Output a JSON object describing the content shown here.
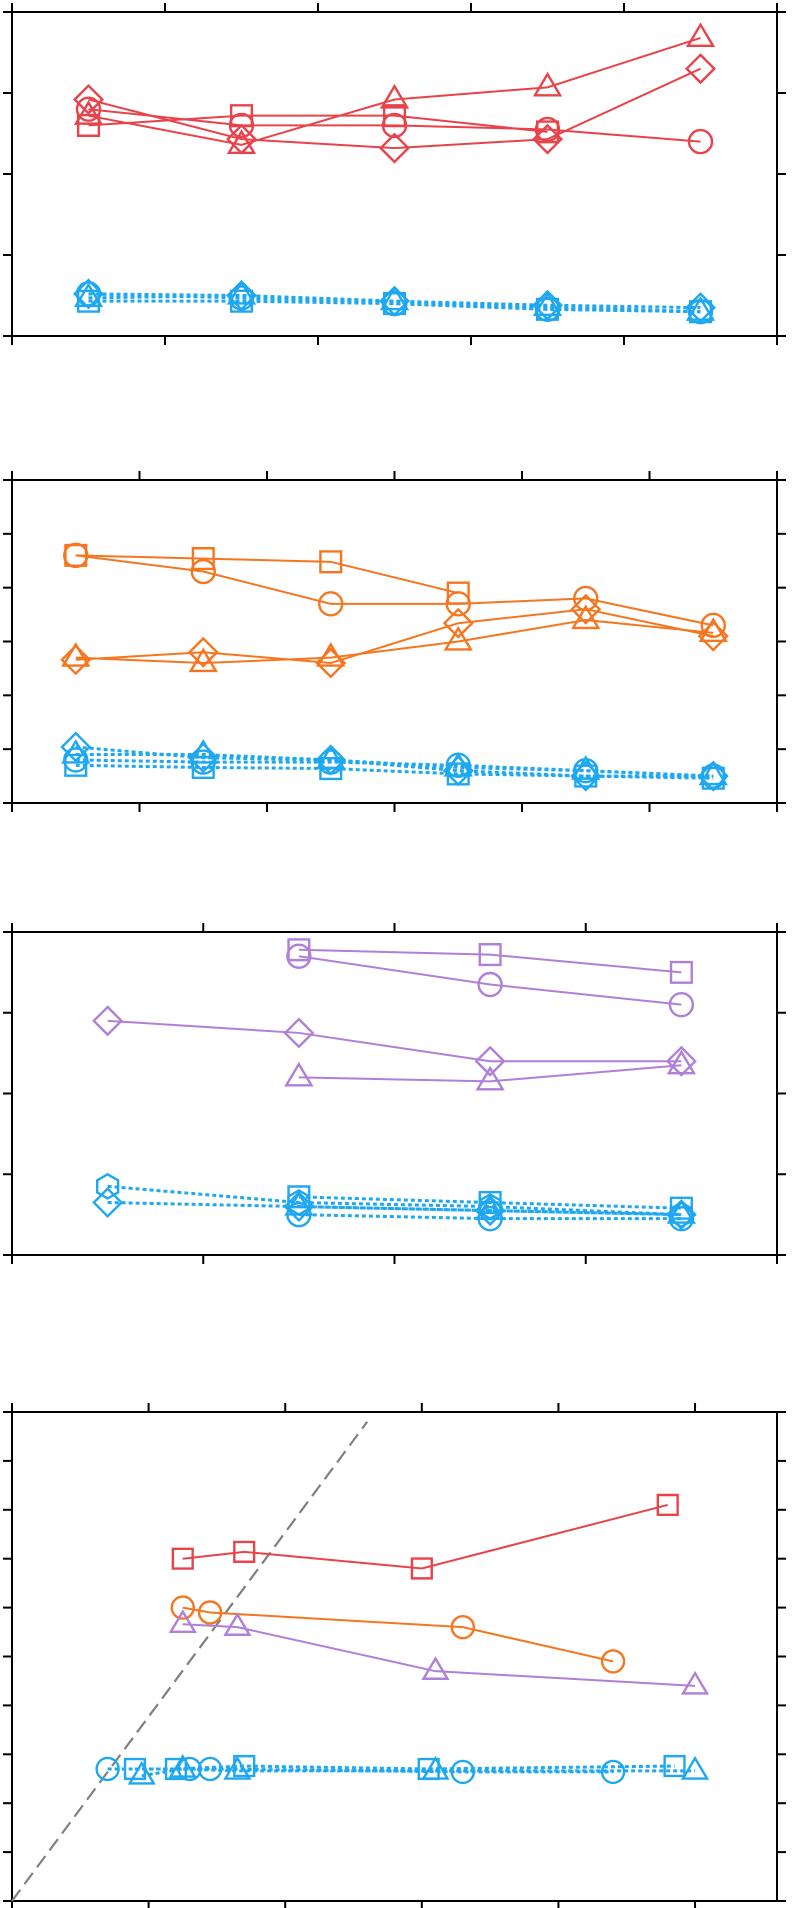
{
  "colors": {
    "red": "#e8434a",
    "orange": "#f5761f",
    "purple": "#b07fd6",
    "blue": "#1fa8f0",
    "gray": "#808080",
    "frame": "#000000"
  },
  "chart_data": [
    {
      "type": "line",
      "title": "",
      "xlabel": "",
      "ylabel": "",
      "xlim": [
        0.5,
        5.5
      ],
      "ylim": [
        0,
        4
      ],
      "xticks": [
        0.5,
        1.5,
        2.5,
        3.5,
        4.5,
        5.5
      ],
      "yticks": [
        0,
        1,
        2,
        3,
        4
      ],
      "grid": false,
      "series": [
        {
          "marker": "circle",
          "color": "red",
          "dash": false,
          "x": [
            1,
            2,
            3,
            4,
            5
          ],
          "y": [
            2.8,
            2.6,
            2.6,
            2.55,
            2.4
          ]
        },
        {
          "marker": "square",
          "color": "red",
          "dash": false,
          "x": [
            1,
            2,
            3,
            4
          ],
          "y": [
            2.6,
            2.72,
            2.72,
            2.52
          ]
        },
        {
          "marker": "triangle",
          "color": "red",
          "dash": false,
          "x": [
            1,
            2,
            3,
            4,
            5
          ],
          "y": [
            2.72,
            2.36,
            2.92,
            3.07,
            3.68
          ]
        },
        {
          "marker": "diamond",
          "color": "red",
          "dash": false,
          "x": [
            1,
            2,
            3,
            4,
            5
          ],
          "y": [
            2.92,
            2.43,
            2.32,
            2.43,
            3.3
          ]
        },
        {
          "marker": "circle",
          "color": "blue",
          "dash": true,
          "x": [
            1,
            2,
            3,
            4,
            5
          ],
          "y": [
            0.52,
            0.47,
            0.4,
            0.33,
            0.3
          ]
        },
        {
          "marker": "square",
          "color": "blue",
          "dash": true,
          "x": [
            1,
            2,
            3,
            4,
            5
          ],
          "y": [
            0.43,
            0.43,
            0.4,
            0.33,
            0.3
          ]
        },
        {
          "marker": "triangle",
          "color": "blue",
          "dash": true,
          "x": [
            1,
            2,
            3,
            4,
            5
          ],
          "y": [
            0.47,
            0.5,
            0.43,
            0.36,
            0.3
          ]
        },
        {
          "marker": "diamond",
          "color": "blue",
          "dash": true,
          "x": [
            1,
            2,
            3,
            4,
            5
          ],
          "y": [
            0.52,
            0.5,
            0.43,
            0.38,
            0.35
          ]
        }
      ]
    },
    {
      "type": "line",
      "title": "",
      "xlabel": "",
      "ylabel": "",
      "xlim": [
        0.5,
        6.5
      ],
      "ylim": [
        0,
        3
      ],
      "xticks": [
        0.5,
        1.5,
        2.5,
        3.5,
        4.5,
        5.5,
        6.5
      ],
      "yticks": [
        0,
        0.5,
        1,
        1.5,
        2,
        2.5,
        3
      ],
      "grid": false,
      "series": [
        {
          "marker": "circle",
          "color": "orange",
          "dash": false,
          "x": [
            1,
            2,
            3,
            4,
            5,
            6
          ],
          "y": [
            2.3,
            2.15,
            1.85,
            1.85,
            1.9,
            1.65
          ]
        },
        {
          "marker": "square",
          "color": "orange",
          "dash": false,
          "x": [
            1,
            2,
            3,
            4
          ],
          "y": [
            2.3,
            2.27,
            2.24,
            1.95
          ]
        },
        {
          "marker": "triangle",
          "color": "orange",
          "dash": false,
          "x": [
            1,
            2,
            3,
            4,
            5,
            6
          ],
          "y": [
            1.35,
            1.3,
            1.35,
            1.5,
            1.7,
            1.58
          ]
        },
        {
          "marker": "diamond",
          "color": "orange",
          "dash": false,
          "x": [
            1,
            2,
            3,
            4,
            5,
            6
          ],
          "y": [
            1.33,
            1.4,
            1.3,
            1.67,
            1.8,
            1.55
          ]
        },
        {
          "marker": "circle",
          "color": "blue",
          "dash": true,
          "x": [
            1,
            2,
            3,
            4,
            5,
            6
          ],
          "y": [
            0.4,
            0.38,
            0.38,
            0.35,
            0.3,
            0.25
          ]
        },
        {
          "marker": "square",
          "color": "blue",
          "dash": true,
          "x": [
            1,
            2,
            3,
            4,
            5,
            6
          ],
          "y": [
            0.35,
            0.33,
            0.32,
            0.27,
            0.25,
            0.23
          ]
        },
        {
          "marker": "triangle",
          "color": "blue",
          "dash": true,
          "x": [
            1,
            2,
            3,
            4,
            5,
            6
          ],
          "y": [
            0.45,
            0.45,
            0.4,
            0.33,
            0.3,
            0.25
          ]
        },
        {
          "marker": "diamond",
          "color": "blue",
          "dash": true,
          "x": [
            1,
            2,
            3,
            4,
            5,
            6
          ],
          "y": [
            0.52,
            0.42,
            0.4,
            0.3,
            0.25,
            0.25
          ]
        }
      ]
    },
    {
      "type": "line",
      "title": "",
      "xlabel": "",
      "ylabel": "",
      "xlim": [
        0.5,
        4.5
      ],
      "ylim": [
        0,
        4
      ],
      "xticks": [
        0.5,
        1.5,
        2.5,
        3.5,
        4.5
      ],
      "yticks": [
        0,
        1,
        2,
        3,
        4
      ],
      "grid": false,
      "series": [
        {
          "marker": "circle",
          "color": "purple",
          "dash": false,
          "x": [
            2,
            3,
            4
          ],
          "y": [
            3.7,
            3.35,
            3.1
          ]
        },
        {
          "marker": "square",
          "color": "purple",
          "dash": false,
          "x": [
            2,
            3,
            4
          ],
          "y": [
            3.78,
            3.72,
            3.5
          ]
        },
        {
          "marker": "triangle",
          "color": "purple",
          "dash": false,
          "x": [
            2,
            3,
            4
          ],
          "y": [
            2.2,
            2.15,
            2.35
          ]
        },
        {
          "marker": "diamond",
          "color": "purple",
          "dash": false,
          "x": [
            1,
            2,
            3,
            4
          ],
          "y": [
            2.9,
            2.75,
            2.4,
            2.4
          ]
        },
        {
          "marker": "circle",
          "color": "blue",
          "dash": true,
          "x": [
            2,
            3,
            4
          ],
          "y": [
            0.5,
            0.45,
            0.45
          ]
        },
        {
          "marker": "square",
          "color": "blue",
          "dash": true,
          "x": [
            2,
            3,
            4
          ],
          "y": [
            0.72,
            0.65,
            0.58
          ]
        },
        {
          "marker": "triangle",
          "color": "blue",
          "dash": true,
          "x": [
            2,
            3,
            4
          ],
          "y": [
            0.6,
            0.55,
            0.5
          ]
        },
        {
          "marker": "diamond",
          "color": "blue",
          "dash": true,
          "x": [
            1,
            2,
            3,
            4
          ],
          "y": [
            0.65,
            0.6,
            0.55,
            0.5
          ]
        },
        {
          "marker": "hexagon",
          "color": "blue",
          "dash": true,
          "x": [
            1,
            2,
            3,
            4
          ],
          "y": [
            0.85,
            0.65,
            0.6,
            0.5
          ]
        }
      ]
    },
    {
      "type": "line",
      "title": "",
      "xlabel": "",
      "ylabel": "",
      "xlim": [
        0,
        5.6
      ],
      "ylim": [
        0,
        5
      ],
      "xticks": [
        0,
        1,
        2,
        3,
        4,
        5
      ],
      "yticks": [
        0,
        0.5,
        1,
        1.5,
        2,
        2.5,
        3,
        3.5,
        4,
        4.5,
        5
      ],
      "grid": false,
      "reference_line": {
        "from": [
          0,
          0
        ],
        "to": [
          2.6,
          4.9
        ],
        "dash": true,
        "color": "gray"
      },
      "series": [
        {
          "marker": "square",
          "color": "red",
          "dash": false,
          "x": [
            1.25,
            1.7,
            3.0,
            4.8
          ],
          "y": [
            3.5,
            3.57,
            3.4,
            4.05
          ]
        },
        {
          "marker": "circle",
          "color": "orange",
          "dash": false,
          "x": [
            1.25,
            1.45,
            3.3,
            4.4
          ],
          "y": [
            3.0,
            2.95,
            2.8,
            2.45
          ]
        },
        {
          "marker": "triangle",
          "color": "purple",
          "dash": false,
          "x": [
            1.25,
            1.65,
            3.1,
            5.0
          ],
          "y": [
            2.83,
            2.8,
            2.35,
            2.2
          ]
        },
        {
          "marker": "circle",
          "color": "blue",
          "dash": true,
          "x": [
            0.7,
            1.3,
            1.45,
            3.3,
            4.4
          ],
          "y": [
            1.35,
            1.35,
            1.35,
            1.32,
            1.32
          ]
        },
        {
          "marker": "square",
          "color": "blue",
          "dash": true,
          "x": [
            0.9,
            1.2,
            1.7,
            3.05,
            4.85
          ],
          "y": [
            1.35,
            1.35,
            1.38,
            1.35,
            1.38
          ]
        },
        {
          "marker": "triangle",
          "color": "blue",
          "dash": true,
          "x": [
            0.95,
            1.25,
            1.65,
            3.1,
            5.0
          ],
          "y": [
            1.28,
            1.35,
            1.33,
            1.33,
            1.33
          ]
        }
      ]
    }
  ]
}
